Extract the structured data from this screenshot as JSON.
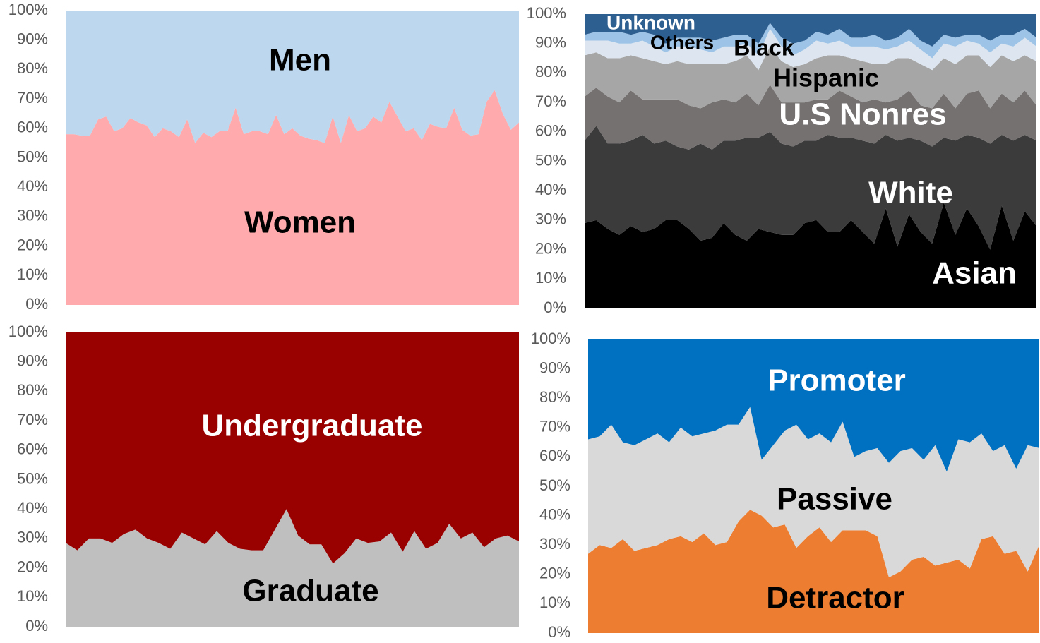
{
  "chart_data": [
    {
      "type": "area",
      "stacked": true,
      "ylim": [
        0,
        100
      ],
      "yticks": [
        {
          "value": 0,
          "label": "0%"
        },
        {
          "value": 10,
          "label": "10%"
        },
        {
          "value": 20,
          "label": "20%"
        },
        {
          "value": 30,
          "label": "30%"
        },
        {
          "value": 40,
          "label": "40%"
        },
        {
          "value": 50,
          "label": "50%"
        },
        {
          "value": 60,
          "label": "60%"
        },
        {
          "value": 70,
          "label": "70%"
        },
        {
          "value": 80,
          "label": "80%"
        },
        {
          "value": 90,
          "label": "90%"
        },
        {
          "value": 100,
          "label": "100%"
        }
      ],
      "series": [
        {
          "name": "Women",
          "color": "#ffabad",
          "label_color": "#000000",
          "values": [
            58,
            58,
            57.5,
            57.5,
            63,
            64,
            59,
            60,
            63.5,
            62,
            61,
            57,
            60,
            59,
            57,
            63,
            55,
            58.5,
            57,
            59,
            59,
            67,
            58,
            59,
            59,
            58,
            64.5,
            58,
            60,
            57.5,
            56.5,
            56,
            55,
            64,
            55,
            64.5,
            59,
            60,
            64,
            62,
            69,
            64,
            59,
            60,
            56,
            61.5,
            60.5,
            60,
            67,
            59.5,
            57.5,
            58,
            69,
            73,
            65,
            59.5,
            62
          ]
        },
        {
          "name": "Men",
          "color": "#bdd7ee",
          "label_color": "#000000",
          "values": [
            42,
            42,
            42.5,
            42.5,
            37,
            36,
            41,
            40,
            36.5,
            38,
            39,
            43,
            40,
            41,
            43,
            37,
            45,
            41.5,
            43,
            41,
            41,
            33,
            42,
            41,
            41,
            42,
            35.5,
            42,
            40,
            42.5,
            43.5,
            44,
            45,
            36,
            45,
            35.5,
            41,
            40,
            36,
            38,
            31,
            36,
            41,
            40,
            44,
            38.5,
            39.5,
            40,
            33,
            40.5,
            42.5,
            42,
            31,
            27,
            35,
            40.5,
            38
          ]
        }
      ]
    },
    {
      "type": "area",
      "stacked": true,
      "ylim": [
        0,
        100
      ],
      "yticks": [
        {
          "value": 0,
          "label": "0%"
        },
        {
          "value": 10,
          "label": "10%"
        },
        {
          "value": 20,
          "label": "20%"
        },
        {
          "value": 30,
          "label": "30%"
        },
        {
          "value": 40,
          "label": "40%"
        },
        {
          "value": 50,
          "label": "50%"
        },
        {
          "value": 60,
          "label": "60%"
        },
        {
          "value": 70,
          "label": "70%"
        },
        {
          "value": 80,
          "label": "80%"
        },
        {
          "value": 90,
          "label": "90%"
        },
        {
          "value": 100,
          "label": "100%"
        }
      ],
      "series": [
        {
          "name": "Asian",
          "color": "#000000",
          "label_color": "#ffffff",
          "values": [
            29,
            30,
            27,
            25,
            28,
            26,
            27,
            30,
            30,
            27,
            23,
            24,
            29,
            25,
            23,
            27,
            26,
            25,
            25,
            29,
            30,
            26,
            26,
            30,
            26,
            22,
            34,
            21,
            32,
            26,
            22,
            36,
            25,
            34,
            28,
            20,
            35,
            23,
            33,
            28
          ]
        },
        {
          "name": "White",
          "color": "#3b3b3b",
          "label_color": "#ffffff",
          "values": [
            28,
            32,
            29,
            31,
            29,
            33,
            29,
            27,
            25,
            27,
            33,
            30,
            28,
            32,
            35,
            31,
            34,
            31,
            30,
            28,
            27,
            33,
            32,
            28,
            31,
            34,
            25,
            36,
            26,
            31,
            33,
            22,
            32,
            25,
            30,
            36,
            24,
            34,
            26,
            29
          ]
        },
        {
          "name": "U.S Nonres",
          "color": "#767171",
          "label_color": "#ffffff",
          "values": [
            15,
            13,
            16,
            14,
            17,
            12,
            15,
            14,
            16,
            15,
            12,
            16,
            14,
            13,
            15,
            11,
            16,
            14,
            15,
            13,
            14,
            12,
            16,
            14,
            13,
            15,
            11,
            14,
            16,
            12,
            13,
            15,
            11,
            14,
            16,
            12,
            14,
            13,
            15,
            12
          ]
        },
        {
          "name": "Hispanic",
          "color": "#a6a6a6",
          "label_color": "#000000",
          "values": [
            14,
            12,
            13,
            15,
            12,
            14,
            13,
            12,
            13,
            14,
            15,
            13,
            12,
            14,
            13,
            12,
            13,
            14,
            12,
            13,
            14,
            15,
            12,
            13,
            14,
            12,
            13,
            14,
            11,
            14,
            13,
            12,
            15,
            13,
            12,
            14,
            13,
            14,
            12,
            15
          ]
        },
        {
          "name": "Black",
          "color": "#dde6f0",
          "label_color": "#000000",
          "values": [
            5,
            4,
            6,
            5,
            4,
            6,
            5,
            4,
            5,
            6,
            5,
            4,
            6,
            5,
            4,
            5,
            6,
            5,
            4,
            5,
            6,
            4,
            5,
            4,
            5,
            6,
            5,
            4,
            6,
            5,
            4,
            5,
            6,
            5,
            4,
            5,
            4,
            5,
            6,
            5
          ]
        },
        {
          "name": "Others",
          "color": "#9dc3e6",
          "label_color": "#000000",
          "values": [
            2,
            3,
            3,
            4,
            3,
            3,
            4,
            3,
            3,
            3,
            4,
            4,
            3,
            4,
            3,
            4,
            2,
            3,
            4,
            3,
            3,
            3,
            4,
            3,
            3,
            4,
            3,
            3,
            4,
            3,
            4,
            3,
            3,
            2,
            3,
            4,
            3,
            4,
            3,
            3
          ]
        },
        {
          "name": "Unknown",
          "color": "#2e5f91",
          "label_color": "#ffffff",
          "values": [
            7,
            6,
            6,
            6,
            7,
            6,
            7,
            10,
            8,
            8,
            8,
            9,
            8,
            7,
            7,
            10,
            3,
            8,
            10,
            9,
            6,
            7,
            5,
            8,
            8,
            7,
            9,
            8,
            5,
            9,
            11,
            7,
            8,
            7,
            7,
            9,
            7,
            7,
            5,
            8
          ]
        }
      ]
    },
    {
      "type": "area",
      "stacked": true,
      "ylim": [
        0,
        100
      ],
      "yticks": [
        {
          "value": 0,
          "label": "0%"
        },
        {
          "value": 10,
          "label": "10%"
        },
        {
          "value": 20,
          "label": "20%"
        },
        {
          "value": 30,
          "label": "30%"
        },
        {
          "value": 40,
          "label": "40%"
        },
        {
          "value": 50,
          "label": "50%"
        },
        {
          "value": 60,
          "label": "60%"
        },
        {
          "value": 70,
          "label": "70%"
        },
        {
          "value": 80,
          "label": "80%"
        },
        {
          "value": 90,
          "label": "90%"
        },
        {
          "value": 100,
          "label": "100%"
        }
      ],
      "series": [
        {
          "name": "Graduate",
          "color": "#bfbfbf",
          "label_color": "#000000",
          "values": [
            28.5,
            26,
            30,
            30,
            28.5,
            31.5,
            33,
            30,
            28.5,
            26.5,
            32,
            30,
            28,
            32.5,
            28.5,
            26.5,
            26,
            26,
            33,
            40,
            31,
            28,
            28,
            21.5,
            25,
            30,
            28.5,
            29,
            32,
            25.5,
            32.5,
            26.5,
            28.5,
            35,
            30,
            32,
            27,
            30,
            31,
            29
          ]
        },
        {
          "name": "Undergraduate",
          "color": "#990000",
          "label_color": "#ffffff",
          "values": [
            71.5,
            74,
            70,
            70,
            71.5,
            68.5,
            67,
            70,
            71.5,
            73.5,
            68,
            70,
            72,
            67.5,
            71.5,
            73.5,
            74,
            74,
            67,
            60,
            69,
            72,
            72,
            78.5,
            75,
            70,
            71.5,
            71,
            68,
            74.5,
            67.5,
            73.5,
            71.5,
            65,
            70,
            68,
            73,
            70,
            69,
            71
          ]
        }
      ]
    },
    {
      "type": "area",
      "stacked": true,
      "ylim": [
        0,
        100
      ],
      "yticks": [
        {
          "value": 0,
          "label": "0%"
        },
        {
          "value": 10,
          "label": "10%"
        },
        {
          "value": 20,
          "label": "20%"
        },
        {
          "value": 30,
          "label": "30%"
        },
        {
          "value": 40,
          "label": "40%"
        },
        {
          "value": 50,
          "label": "50%"
        },
        {
          "value": 60,
          "label": "60%"
        },
        {
          "value": 70,
          "label": "70%"
        },
        {
          "value": 80,
          "label": "80%"
        },
        {
          "value": 90,
          "label": "90%"
        },
        {
          "value": 100,
          "label": "100%"
        }
      ],
      "series": [
        {
          "name": "Detractor",
          "color": "#ed7d31",
          "label_color": "#000000",
          "values": [
            27,
            30,
            29,
            32,
            28,
            29,
            30,
            32,
            33,
            31,
            34,
            30,
            31,
            38,
            42,
            40,
            36,
            37,
            29,
            33,
            36,
            31,
            35,
            35,
            35,
            33,
            19,
            21,
            25,
            26,
            23,
            24,
            25,
            22,
            32,
            33,
            27,
            28,
            21,
            30
          ]
        },
        {
          "name": "Passive",
          "color": "#d9d9d9",
          "label_color": "#000000",
          "values": [
            39,
            37,
            42,
            33,
            36,
            37,
            38,
            33,
            37,
            36,
            34,
            39,
            40,
            33,
            35,
            19,
            28,
            32,
            42,
            33,
            32,
            34,
            37,
            25,
            27,
            30,
            39,
            41,
            38,
            33,
            41,
            31,
            41,
            43,
            36,
            29,
            37,
            28,
            43,
            33
          ]
        },
        {
          "name": "Promoter",
          "color": "#0070c0",
          "label_color": "#ffffff",
          "values": [
            34,
            33,
            29,
            35,
            36,
            34,
            32,
            35,
            30,
            33,
            32,
            31,
            29,
            29,
            23,
            41,
            36,
            31,
            29,
            34,
            32,
            35,
            28,
            40,
            38,
            37,
            42,
            38,
            37,
            41,
            36,
            45,
            34,
            35,
            32,
            38,
            36,
            44,
            36,
            37
          ]
        }
      ]
    }
  ]
}
